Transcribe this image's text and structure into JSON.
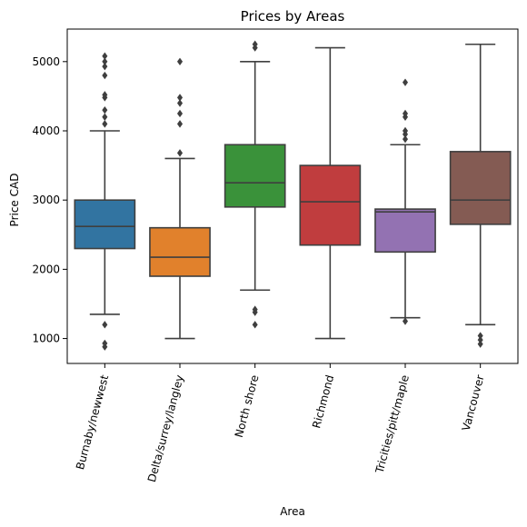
{
  "chart_data": {
    "type": "box",
    "title": "Prices by Areas",
    "xlabel": "Area",
    "ylabel": "Price CAD",
    "ylim": [
      640,
      5470
    ],
    "y_ticks": [
      1000,
      2000,
      3000,
      4000,
      5000
    ],
    "grid": false,
    "categories": [
      "Burnaby/newwest",
      "Delta/surrey/langley",
      "North shore",
      "Richmond",
      "Tricities/pitt/maple",
      "Vancouver"
    ],
    "boxes": [
      {
        "category": "Burnaby/newwest",
        "color": "#3274a1",
        "whisker_low": 1350,
        "q1": 2300,
        "median": 2620,
        "q3": 3000,
        "whisker_high": 4000,
        "outliers": [
          880,
          930,
          1200,
          4100,
          4200,
          4300,
          4480,
          4520,
          4800,
          4930,
          5000,
          5080
        ]
      },
      {
        "category": "Delta/surrey/langley",
        "color": "#e1812c",
        "whisker_low": 1000,
        "q1": 1900,
        "median": 2175,
        "q3": 2600,
        "whisker_high": 3600,
        "outliers": [
          3680,
          4100,
          4250,
          4400,
          4480,
          5000
        ]
      },
      {
        "category": "North shore",
        "color": "#3a923a",
        "whisker_low": 1700,
        "q1": 2900,
        "median": 3250,
        "q3": 3800,
        "whisker_high": 5000,
        "outliers": [
          1200,
          1380,
          1420,
          5200,
          5250
        ]
      },
      {
        "category": "Richmond",
        "color": "#c03d3e",
        "whisker_low": 1000,
        "q1": 2350,
        "median": 2975,
        "q3": 3500,
        "whisker_high": 5200,
        "outliers": []
      },
      {
        "category": "Tricities/pitt/maple",
        "color": "#9372b2",
        "whisker_low": 1300,
        "q1": 2250,
        "median": 2830,
        "q3": 2870,
        "whisker_high": 3800,
        "outliers": [
          1250,
          3880,
          3950,
          4000,
          4200,
          4250,
          4700
        ]
      },
      {
        "category": "Vancouver",
        "color": "#845b53",
        "whisker_low": 1200,
        "q1": 2650,
        "median": 3000,
        "q3": 3700,
        "whisker_high": 5250,
        "outliers": [
          920,
          980,
          1040
        ]
      }
    ]
  }
}
